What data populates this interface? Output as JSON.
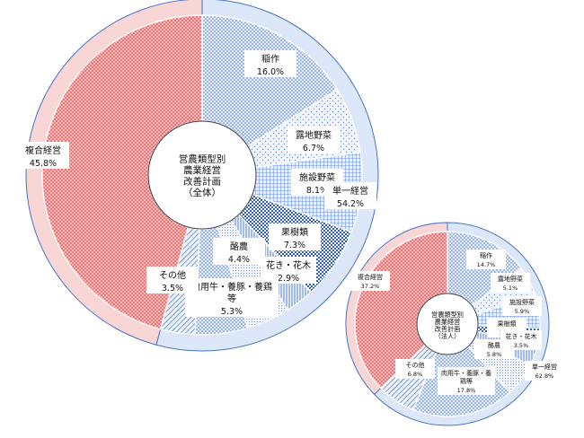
{
  "colors": {
    "crop_fill": "#e6eefb",
    "crop_pattern": "#3f6fc9",
    "complex_fill": "#f8d0d0",
    "complex_pattern": "#e05050",
    "single_ring": "#dce8fa",
    "complex_ring": "#f9d6d6",
    "ring_stroke": "#4a73c6"
  },
  "chart_data": [
    {
      "type": "pie",
      "center_label": [
        "営農類型別",
        "農業経営",
        "改善計画",
        "（全体）"
      ],
      "slices": [
        {
          "name": "稲作",
          "pct_text": "16.0%",
          "value": 16.0,
          "group": "single"
        },
        {
          "name": "露地野菜",
          "pct_text": "6.7%",
          "value": 6.7,
          "group": "single"
        },
        {
          "name": "施設野菜",
          "pct_text": "8.1%",
          "value": 8.1,
          "group": "single"
        },
        {
          "name": "果樹類",
          "pct_text": "7.3%",
          "value": 7.3,
          "group": "single"
        },
        {
          "name": "花き・花木",
          "pct_text": "2.9%",
          "value": 2.9,
          "group": "single"
        },
        {
          "name": "酪農",
          "pct_text": "4.4%",
          "value": 4.4,
          "group": "single"
        },
        {
          "name_lines": [
            "肉用牛・養豚・養鶏",
            "等"
          ],
          "pct_text": "5.3%",
          "value": 5.3,
          "group": "single"
        },
        {
          "name": "その他",
          "pct_text": "3.5%",
          "value": 3.5,
          "group": "single"
        },
        {
          "name": "複合経営",
          "pct_text": "45.8%",
          "value": 45.8,
          "group": "complex"
        }
      ],
      "outer_ring": [
        {
          "name": "単一経営",
          "pct_text": "54.2%",
          "value": 54.2
        },
        {
          "name": "複合経営",
          "pct_text": "45.8%",
          "value": 45.8
        }
      ]
    },
    {
      "type": "pie",
      "center_label": [
        "営農類型別",
        "農業経営",
        "改善計画",
        "（法人）"
      ],
      "slices": [
        {
          "name": "稲作",
          "pct_text": "14.7%",
          "value": 14.7,
          "group": "single"
        },
        {
          "name": "露地野菜",
          "pct_text": "5.1%",
          "value": 5.1,
          "group": "single"
        },
        {
          "name": "施設野菜",
          "pct_text": "5.9%",
          "value": 5.9,
          "group": "single"
        },
        {
          "name": "果樹類",
          "pct_text": "3.2%",
          "value": 3.2,
          "group": "single"
        },
        {
          "name": "花き・花木",
          "pct_text": "3.5%",
          "value": 3.5,
          "group": "single"
        },
        {
          "name": "酪農",
          "pct_text": "5.8%",
          "value": 5.8,
          "group": "single"
        },
        {
          "name_lines": [
            "肉用牛・養豚・養",
            "鶏等"
          ],
          "pct_text": "17.8%",
          "value": 17.8,
          "group": "single"
        },
        {
          "name": "その他",
          "pct_text": "6.8%",
          "value": 6.8,
          "group": "single"
        },
        {
          "name": "複合経営",
          "pct_text": "37.2%",
          "value": 37.2,
          "group": "complex"
        }
      ],
      "outer_ring": [
        {
          "name": "単一経営",
          "pct_text": "62.8%",
          "value": 62.8
        },
        {
          "name": "複合経営",
          "pct_text": "37.2%",
          "value": 37.2
        }
      ]
    }
  ]
}
